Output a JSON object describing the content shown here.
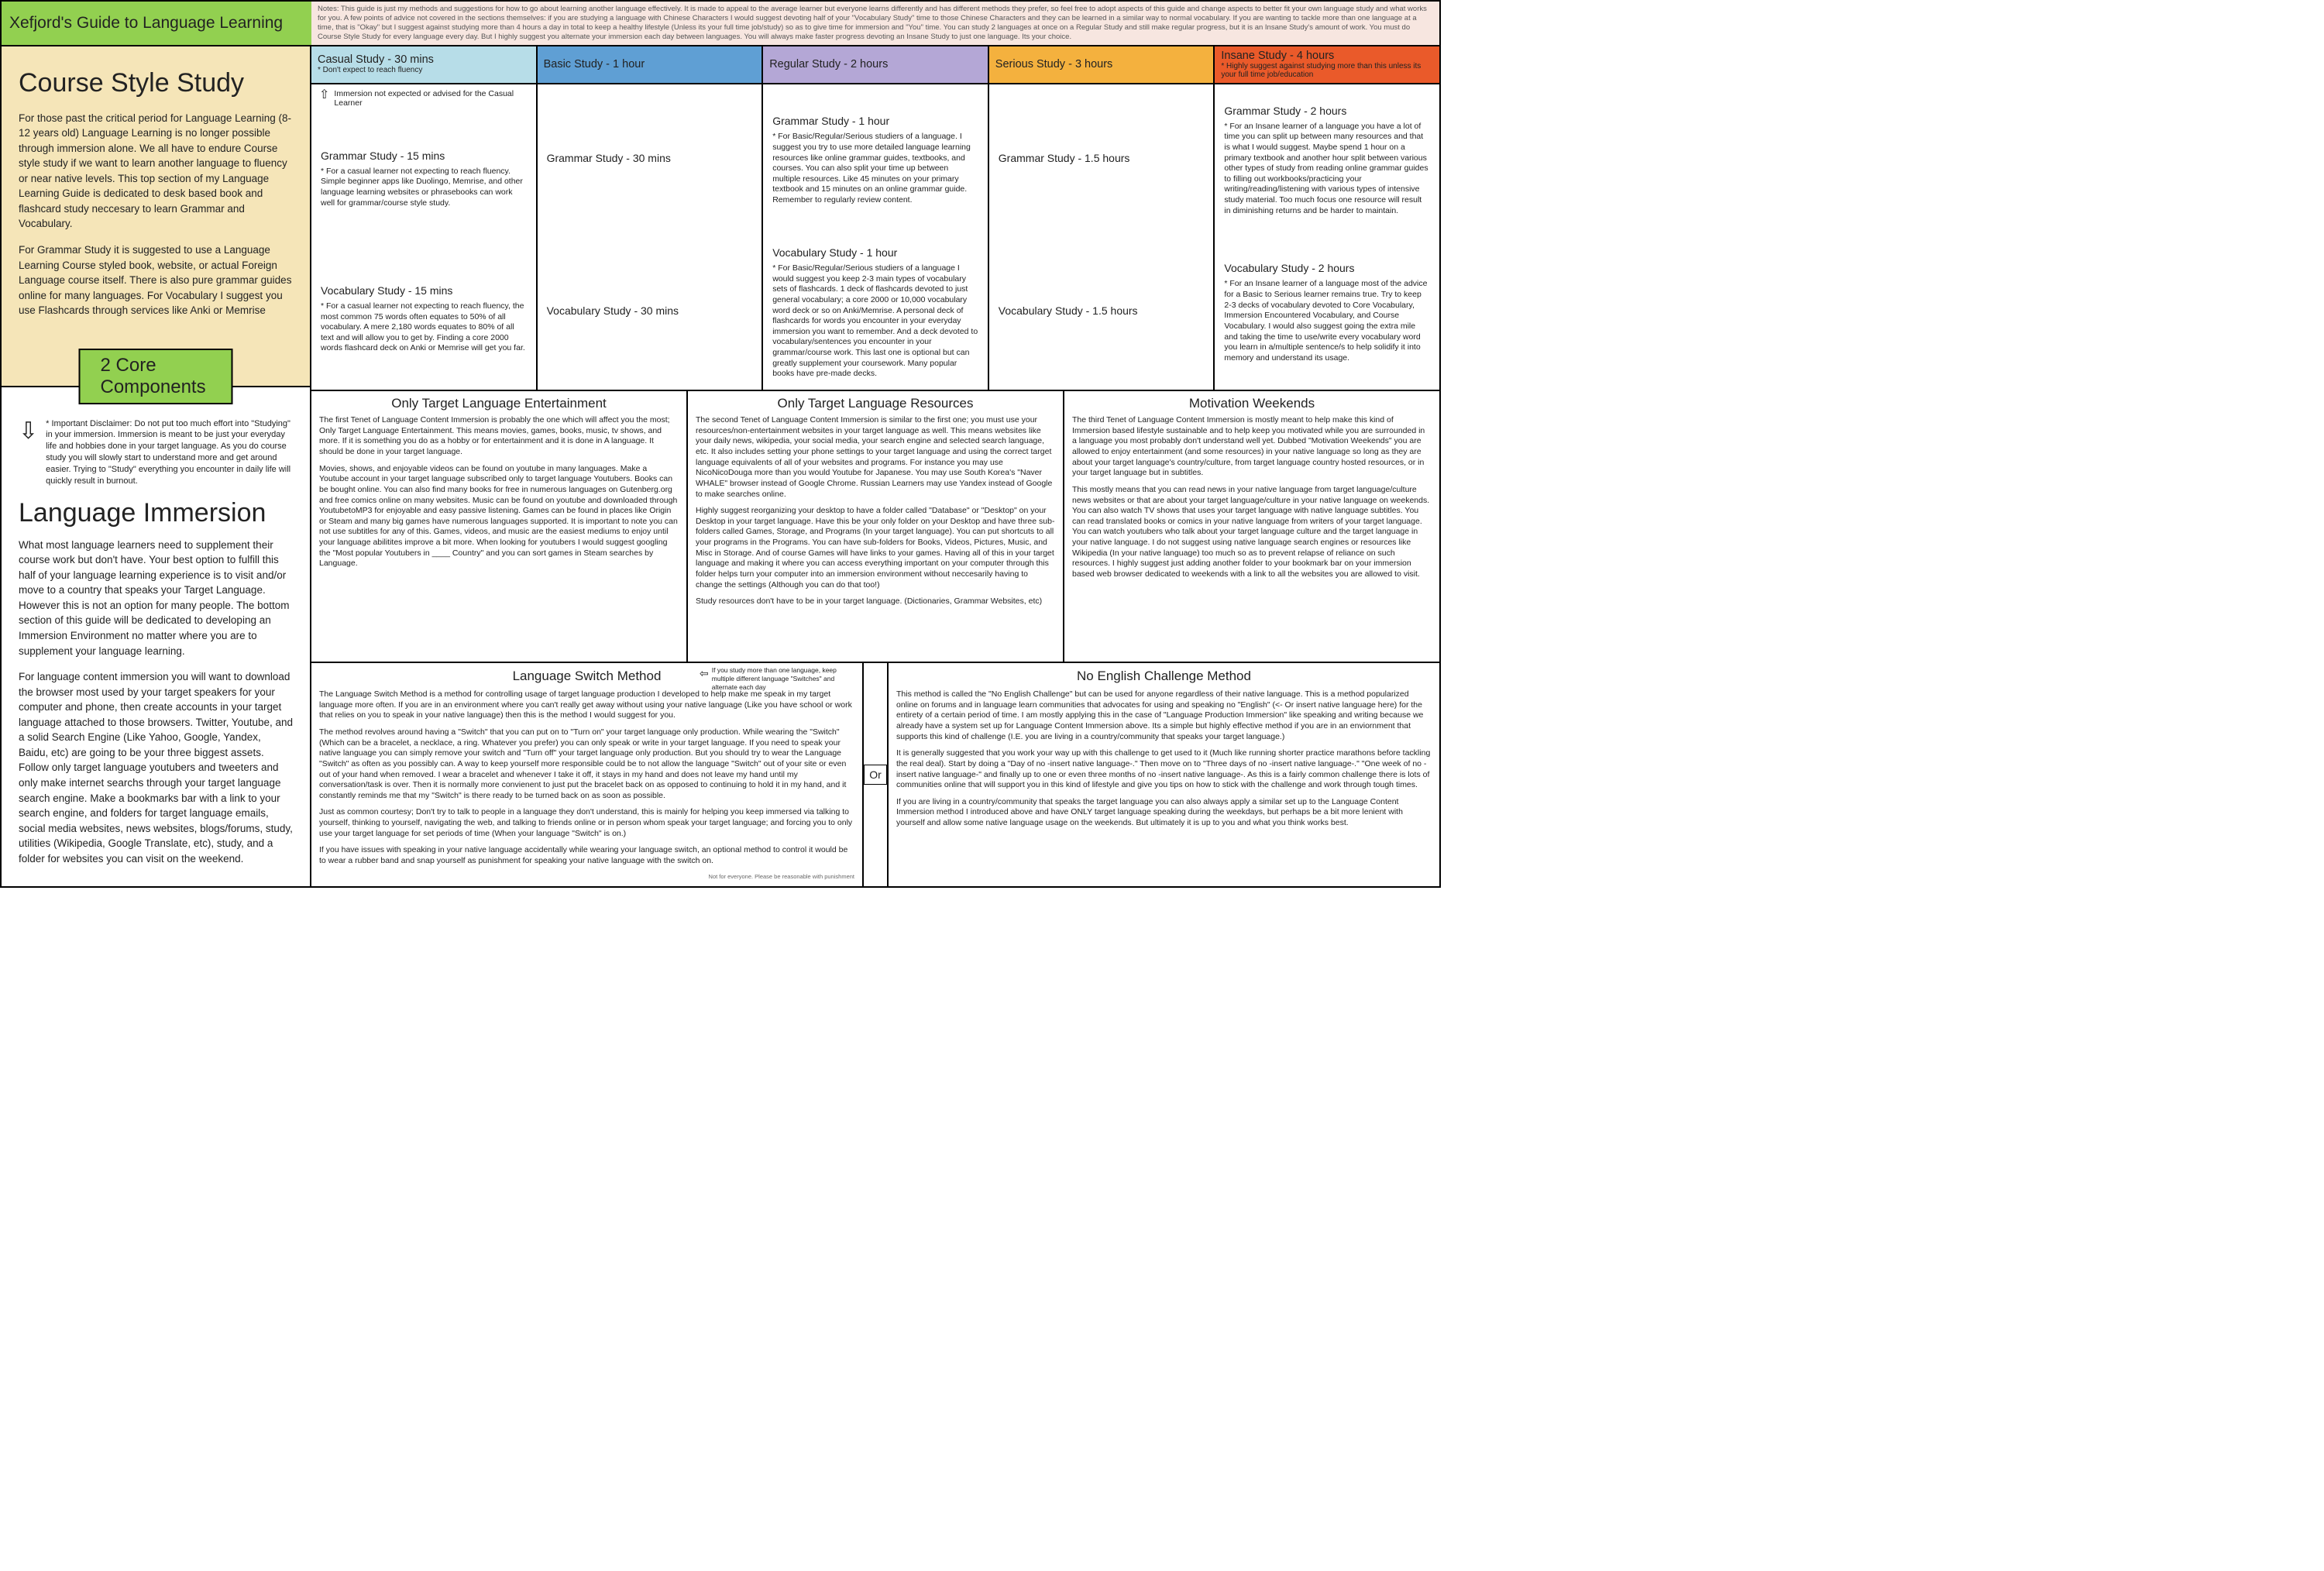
{
  "colors": {
    "title_bg": "#92d050",
    "course_bg": "#f5e5b8",
    "core_bg": "#92d050",
    "casual_bg": "#b7dde8",
    "basic_bg": "#5f9fd4",
    "regular_bg": "#b4a7d6",
    "serious_bg": "#f4b13e",
    "insane_bg": "#ea5a2a",
    "notes_bg": "#f7e6e0"
  },
  "header": {
    "title": "Xefjord's Guide to Language Learning",
    "notes": "Notes: This guide is just my methods and suggestions for how to go about learning another language effectively. It is made to appeal to the average learner but everyone learns differently and has different methods they prefer, so feel free to adopt aspects of this guide and change aspects to better fit your own language study and what works for you. A few points of advice not covered in the sections themselves: if you are studying a language with Chinese Characters I would suggest devoting half of your \"Vocabulary Study\" time to those Chinese Characters and they can be learned in a similar way to normal vocabulary. If you are wanting to tackle more than one language at a time, that is \"Okay\" but I suggest against studying more than 4 hours a day in total to keep a healthy lifestyle (Unless its your full time job/study) so as to give time for immersion and \"You\" time. You can study 2 languages at once on a Regular Study and still make regular progress, but it is an Insane Study's amount of work. You must do Course Style Study for every language every day. But I highly suggest you alternate your immersion each day between languages. You will always make faster progress devoting an Insane Study to just one language. Its your choice."
  },
  "course": {
    "title": "Course Style Study",
    "p1": "For those past the critical period for Language Learning (8-12 years old) Language Learning is no longer possible through immersion alone. We all have to endure Course style study if we want to learn another language to fluency or near native levels. This top section of my Language Learning Guide is dedicated to desk based book and flashcard study neccesary to learn Grammar and Vocabulary.",
    "p2": "For Grammar Study it is suggested to use a Language Learning Course styled book, website, or actual Foreign Language course itself. There is also pure grammar guides online for many languages. For Vocabulary I suggest you use Flashcards through services like Anki or Memrise",
    "core": "2 Core Components"
  },
  "immersion": {
    "disclaimer": "* Important Disclaimer: Do not put too much effort into \"Studying\" in your immersion. Immersion is meant to be just your everyday life and hobbies done in your target language. As you do course study you will slowly start to understand more and get around easier. Trying to \"Study\" everything you encounter in daily life will quickly result in burnout.",
    "title": "Language Immersion",
    "p1": "What most language learners need to supplement their course work but don't have. Your best option to fulfill this half of your language learning experience is to visit and/or move to a country that speaks your Target Language. However this is not an option for many people. The bottom section of this guide will be dedicated to developing an Immersion Environment no matter where you are to supplement your language learning.",
    "p2": "For language content immersion you will want to download the browser most used by your target speakers for your computer and phone, then create accounts in your target language attached to those browsers. Twitter, Youtube, and a solid Search Engine (Like Yahoo, Google, Yandex, Baidu, etc) are going to be your three biggest assets. Follow only target language youtubers and tweeters and only make internet searchs through your target language search engine. Make a bookmarks bar with a link to your search engine, and folders for target language emails, social media websites, news websites, blogs/forums, study, utilities (Wikipedia, Google Translate, etc), study, and a folder for websites you can visit on the weekend."
  },
  "levels": [
    {
      "title": "Casual Study - 30 mins",
      "sub": "* Don't expect to reach fluency",
      "bg": "casual_bg"
    },
    {
      "title": "Basic Study - 1 hour",
      "sub": "",
      "bg": "basic_bg"
    },
    {
      "title": "Regular Study - 2 hours",
      "sub": "",
      "bg": "regular_bg"
    },
    {
      "title": "Serious Study - 3 hours",
      "sub": "",
      "bg": "serious_bg"
    },
    {
      "title": "Insane Study - 4 hours",
      "sub": "* Highly suggest against studying more than this unless its your full time job/education",
      "bg": "insane_bg"
    }
  ],
  "casual_note": "Immersion not expected or advised for the Casual Learner",
  "cells": {
    "casual": {
      "g_h": "Grammar Study - 15 mins",
      "g_b": "* For a casual learner not expecting to reach fluency. Simple beginner apps like Duolingo, Memrise, and other language learning websites or phrasebooks can work well for grammar/course style study.",
      "v_h": "Vocabulary Study - 15 mins",
      "v_b": "* For a casual learner not expecting to reach fluency, the most common 75 words often equates to 50% of all vocabulary. A mere 2,180 words equates to 80% of all text and will allow you to get by. Finding a core 2000 words flashcard deck on Anki or Memrise will get you far."
    },
    "basic": {
      "g_h": "Grammar Study - 30 mins",
      "g_b": "",
      "v_h": "Vocabulary Study - 30 mins",
      "v_b": ""
    },
    "regular": {
      "g_h": "Grammar Study - 1 hour",
      "g_b": "* For Basic/Regular/Serious studiers of a language. I suggest you try to use more detailed language learning resources like online grammar guides, textbooks, and courses. You can also split your time up between multiple resources. Like 45 minutes on your primary textbook and 15 minutes on an online grammar guide. Remember to regularly review content.",
      "v_h": "Vocabulary Study - 1 hour",
      "v_b": "* For Basic/Regular/Serious studiers of a language I would suggest you keep 2-3 main types of vocabulary sets of flashcards. 1 deck of flashcards devoted to just general vocabulary; a core 2000 or 10,000 vocabulary word deck or so on Anki/Memrise. A personal deck of flashcards for words you encounter in your everyday immersion you want to remember. And a deck devoted to vocabulary/sentences you encounter in your grammar/course work. This last one is optional but can greatly supplement your coursework. Many popular books have pre-made decks."
    },
    "serious": {
      "g_h": "Grammar Study - 1.5 hours",
      "g_b": "",
      "v_h": "Vocabulary Study - 1.5 hours",
      "v_b": ""
    },
    "insane": {
      "g_h": "Grammar Study - 2 hours",
      "g_b": "* For an Insane learner of a language you have a lot of time you can split up between many resources and that is what I would suggest. Maybe spend 1 hour on a primary textbook and another hour split between various other types of study from reading online grammar guides to filling out workbooks/practicing your writing/reading/listening with various types of intensive study material. Too much focus one resource will result in diminishing returns and be harder to maintain.",
      "v_h": "Vocabulary Study - 2 hours",
      "v_b": "* For an Insane learner of a language most of the advice for a Basic to Serious learner remains true. Try to keep 2-3 decks of vocabulary devoted to Core Vocabulary, Immersion Encountered Vocabulary, and Course Vocabulary. I would also suggest going the extra mile and taking the time to use/write every vocabulary word you learn in a/multiple sentence/s to help solidify it into memory and understand its usage."
    }
  },
  "tenets": [
    {
      "title": "Only Target Language Entertainment",
      "p1": "The first Tenet of Language Content Immersion is probably the one which will affect you the most; Only Target Language Entertainment. This means movies, games, books, music, tv shows, and more. If it is something you do as a hobby or for entertainment and it is done in A language. It should be done in your target language.",
      "p2": "Movies, shows, and enjoyable videos can be found on youtube in many languages. Make a Youtube account in your target language subscribed only to target language Youtubers. Books can be bought online. You can also find many books for free in numerous languages on Gutenberg.org and free comics online on many websites. Music can be found on youtube and downloaded through YoutubetoMP3 for enjoyable and easy passive listening. Games can be found in places like Origin or Steam and many big games have numerous languages supported. It is important to note you can not use subtitles for any of this. Games, videos, and music are the easiest mediums to enjoy until your language abilitites improve a bit more. When looking for youtubers I would suggest googling the \"Most popular Youtubers in ____ Country\" and you can sort games in Steam searches by Language."
    },
    {
      "title": "Only Target Language Resources",
      "p1": "The second Tenet of Language Content Immersion is similar to the first one; you must use your resources/non-entertainment websites in your target language as well. This means websites like your daily news, wikipedia, your social media, your search engine and selected search language, etc. It also includes setting your phone settings to your target language and using the correct target language equivalents of all of your websites and programs. For instance you may use NicoNicoDouga more than you would Youtube for Japanese. You may use South Korea's \"Naver WHALE\" browser instead of Google Chrome. Russian Learners may use Yandex instead of Google to make searches online.",
      "p2": "Highly suggest reorganizing your desktop to have a folder called \"Database\" or \"Desktop\" on your Desktop in your target language. Have this be your only folder on your Desktop and have three sub-folders called Games, Storage, and Programs (In your target language). You can put shortcuts to all your programs in the Programs. You can have sub-folders for Books, Videos, Pictures, Music, and Misc in Storage. And of course Games will have links to your games. Having all of this in your target language and making it where you can access everything important on your computer through this folder helps turn your computer into an immersion environment without neccesarily having to change the settings (Although you can do that too!)",
      "p3": "Study resources don't have to be in your target language. (Dictionaries, Grammar Websites, etc)"
    },
    {
      "title": "Motivation Weekends",
      "p1": "The third Tenet of Language Content Immersion is mostly meant to help make this kind of Immersion based lifestyle sustainable and to help keep you motivated while you are surrounded in a language you most probably don't understand well yet. Dubbed \"Motivation Weekends\" you are allowed to enjoy entertainment (and some resources) in your native language so long as they are about your target language's country/culture, from target language country hosted resources, or in your target language but in subtitles.",
      "p2": "This mostly means that you can read news in your native language from target language/culture news websites or that are about your target language/culture in your native language on weekends. You can also watch TV shows that uses your target language with native language subtitles. You can read translated books or comics in your native language from writers of your target language. You can watch youtubers who talk about your target language culture and the target language in your native language. I do not suggest using native language search engines or resources like Wikipedia (In your native language) too much so as to prevent relapse of reliance on such resources. I highly suggest just adding another folder to your bookmark bar on your immersion based web browser dedicated to weekends with a link to all the websites you are allowed to visit."
    }
  ],
  "methods": {
    "switch": {
      "title": "Language Switch Method",
      "hnote": "If you study more than one language, keep multiple different language \"Switches\" and alternate each day",
      "p1": "The Language Switch Method is a method for controlling usage of target language production I developed to help make me speak in my target language more often. If you are in an environment where you can't really get away without using your native language (Like you have school or work that relies on you to speak in your native language) then this is the method I would suggest for you.",
      "p2": "The method revolves around having a \"Switch\" that you can put on to \"Turn on\" your target language only production. While wearing the \"Switch\" (Which can be a bracelet, a necklace, a ring. Whatever you prefer) you can only speak or write in your target language. If you need to speak your native language you can simply remove your switch and \"Turn off\" your target language only production. But you should try to wear the Language \"Switch\" as often as you possibly can. A way to keep yourself more responsible could be to not allow the language \"Switch\" out of your site or even out of your hand when removed. I wear a bracelet and whenever I take it off, it stays in my hand and does not leave my hand until my conversation/task is over. Then it is normally more convienent to just put the bracelet back on as opposed to continuing to hold it in my hand, and it constantly reminds me that my \"Switch\" is there ready to be turned back on as soon as possible.",
      "p3": "Just as common courtesy; Don't try to talk to people in a language they don't understand, this is mainly for helping you keep immersed via talking to yourself, thinking to yourself, navigating the web, and talking to friends online or in person whom speak your target language; and forcing you to only use your target language for set periods of time (When your language \"Switch\" is on.)",
      "p4": "If you have issues with speaking in your native language accidentally while wearing your language switch, an optional method to control it would be to wear a rubber band and snap yourself as punishment for speaking your native language with the switch on.",
      "foot": "Not for everyone. Please be reasonable with punishment"
    },
    "or": "Or",
    "noeng": {
      "title": "No English Challenge Method",
      "p1": "This method is called the \"No English Challenge\" but can be used for anyone regardless of their native language. This is a method popularized online on forums and in language learn communities that advocates for using and speaking no \"English\" (<- Or insert native language here) for the entirety of a certain period of time. I am mostly applying this in the case of \"Language Production Immersion\" like speaking and writing because we already have a system set up for Language Content Immersion above. Its a simple but highly effective method if you are in an enviornment that supports this kind of challenge (I.E. you are living in a country/community that speaks your target language.)",
      "p2": "It is generally suggested that you work your way up with this challenge to get used to it (Much like running shorter practice marathons before tackling the real deal). Start by doing a \"Day of no -insert native language-.\" Then move on to \"Three days of no -insert native language-.\"  \"One week of no -insert native language-\" and finally up to one or even three months of no -insert native language-. As this is a fairly common challenge there is lots of communities online that will support you in this kind of lifestyle and give you tips on how to stick with the challenge and work through tough times.",
      "p3": "If you are living in a country/community that speaks the target language you can also always apply a similar set up to the Language Content Immersion method I introduced above and have ONLY target language speaking during the weekdays, but perhaps be a bit more lenient with yourself and allow some native language usage on the weekends. But ultimately it is up to you and what you think works best."
    }
  }
}
